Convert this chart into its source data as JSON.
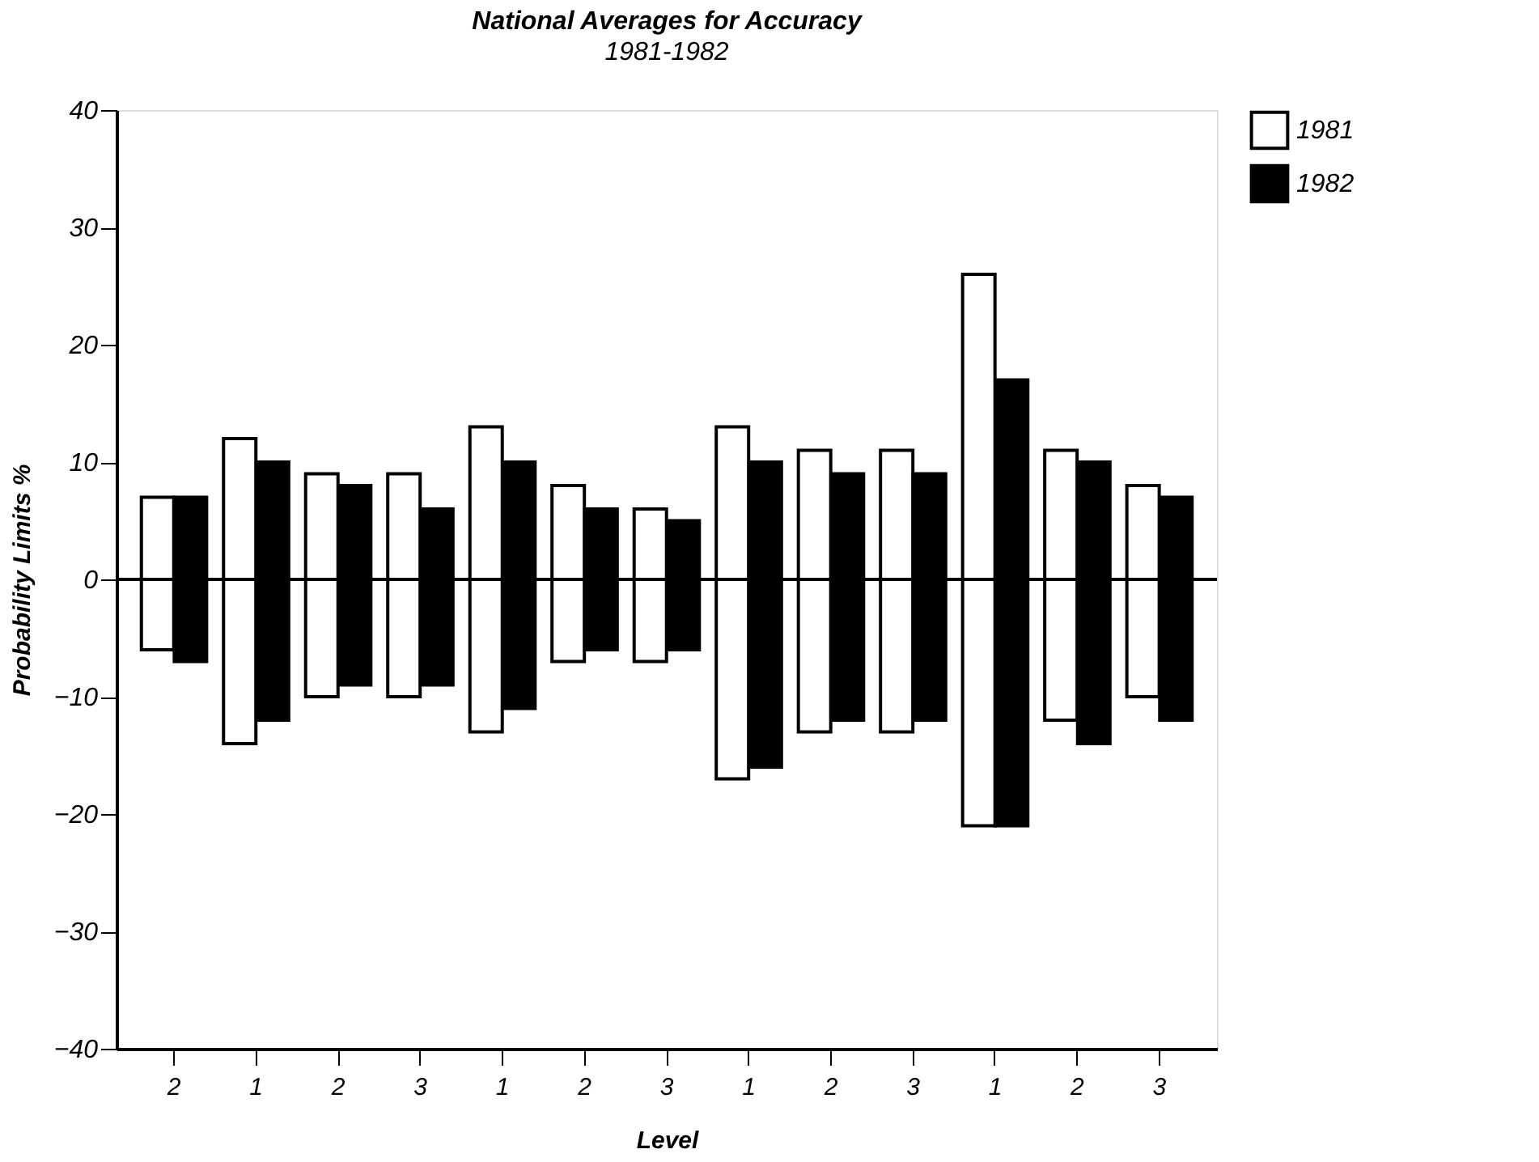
{
  "chart_data": {
    "type": "bar",
    "title": "National Averages for Accuracy",
    "subtitle": "1981-1982",
    "xlabel": "Level",
    "ylabel": "Probability Limits %",
    "categories": [
      "2",
      "1",
      "2",
      "3",
      "1",
      "2",
      "3",
      "1",
      "2",
      "3",
      "1",
      "2",
      "3"
    ],
    "series": [
      {
        "name": "1981",
        "color": "#ffffff",
        "base": [
          -6,
          -14,
          -10,
          -10,
          -13,
          -7,
          -7,
          -17,
          -13,
          -13,
          -21,
          -12,
          -10
        ],
        "values": [
          13,
          26,
          19,
          19,
          26,
          15,
          13,
          30,
          24,
          24,
          47,
          23,
          18
        ]
      },
      {
        "name": "1982",
        "color": "#000000",
        "base": [
          -7,
          -12,
          -9,
          -9,
          -11,
          -6,
          -6,
          -16,
          -12,
          -12,
          -21,
          -14,
          -12
        ],
        "values": [
          14,
          22,
          17,
          15,
          21,
          12,
          11,
          26,
          21,
          21,
          38,
          24,
          19
        ]
      }
    ],
    "ylim": [
      -40,
      40
    ],
    "yticks": [
      -40,
      -30,
      -20,
      -10,
      0,
      10,
      20,
      30,
      40
    ],
    "ref_lines": [
      {
        "axis": "y",
        "value": 0
      }
    ],
    "grid": false,
    "legend": "right"
  }
}
